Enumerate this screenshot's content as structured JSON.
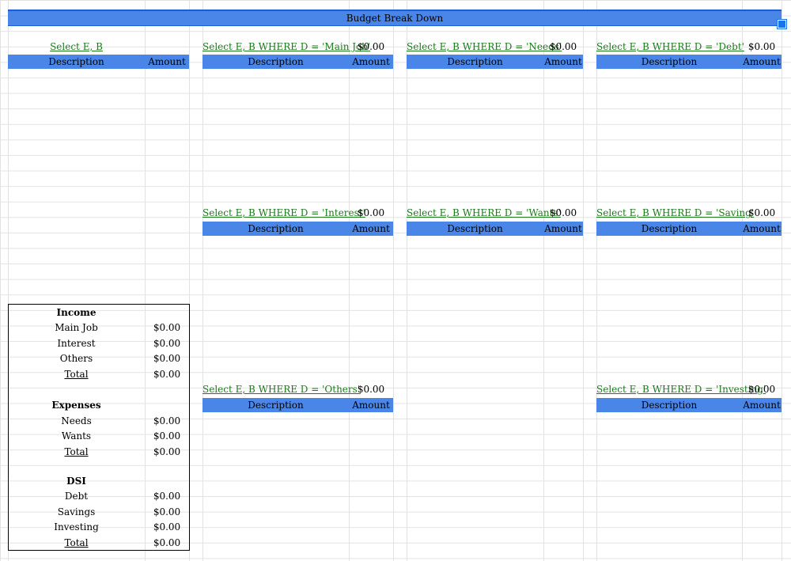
{
  "sheet": {
    "title": "Budget Break Down",
    "col_desc": "Description",
    "col_amount": "Amount"
  },
  "queries": {
    "all": {
      "formula": "Select E, B"
    },
    "main_job": {
      "formula": "Select E, B WHERE D = 'Main Job'",
      "total": "$0.00"
    },
    "needs": {
      "formula": "Select E, B WHERE D = 'Needs'",
      "total": "$0.00"
    },
    "debt": {
      "formula": "Select E, B WHERE D = 'Debt'",
      "total": "$0.00"
    },
    "interest": {
      "formula": "Select E, B WHERE D = 'Interest'",
      "total": "$0.00"
    },
    "wants": {
      "formula": "Select E, B WHERE D = 'Wants'",
      "total": "$0.00"
    },
    "saving": {
      "formula": "Select E, B WHERE D = 'Saving'",
      "total": "$0.00"
    },
    "others": {
      "formula": "Select E, B WHERE D = 'Others'",
      "total": "$0.00"
    },
    "investing": {
      "formula": "Select E, B WHERE D = 'Investing'",
      "total": "$0.00"
    }
  },
  "summary": {
    "income": {
      "heading": "Income",
      "rows": [
        {
          "label": "Main Job",
          "value": "$0.00"
        },
        {
          "label": "Interest",
          "value": "$0.00"
        },
        {
          "label": "Others",
          "value": "$0.00"
        },
        {
          "label": "Total",
          "value": "$0.00"
        }
      ]
    },
    "expenses": {
      "heading": "Expenses",
      "rows": [
        {
          "label": "Needs",
          "value": "$0.00"
        },
        {
          "label": "Wants",
          "value": "$0.00"
        },
        {
          "label": "Total",
          "value": "$0.00"
        }
      ]
    },
    "dsi": {
      "heading": "DSI",
      "rows": [
        {
          "label": "Debt",
          "value": "$0.00"
        },
        {
          "label": "Savings",
          "value": "$0.00"
        },
        {
          "label": "Investing",
          "value": "$0.00"
        },
        {
          "label": "Total",
          "value": "$0.00"
        }
      ]
    }
  },
  "colors": {
    "header_blue": "#4a86e8",
    "link_green": "#1a7a1a",
    "gridline": "#e2e2e2"
  }
}
